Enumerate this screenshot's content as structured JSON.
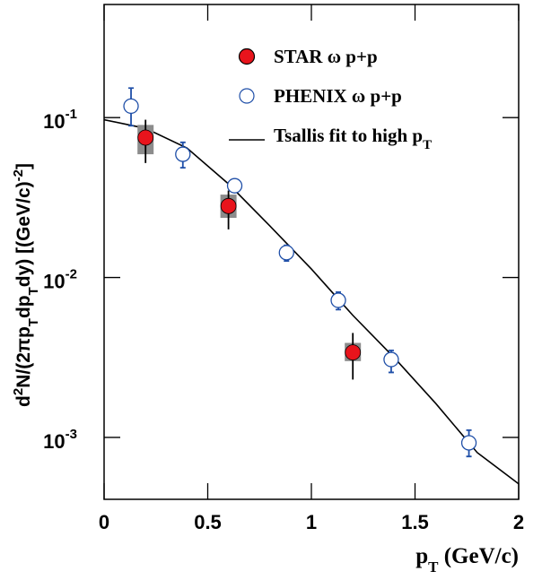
{
  "chart_data": {
    "type": "scatter",
    "log_y": true,
    "legend": "upper right",
    "xlabel": [
      {
        "text": "p"
      },
      {
        "text": "T",
        "shift": "sub"
      },
      {
        "text": " (GeV/c)"
      }
    ],
    "ylabel": [
      {
        "text": "d"
      },
      {
        "text": "2",
        "shift": "super"
      },
      {
        "text": "N/(2πp"
      },
      {
        "text": "T",
        "shift": "sub"
      },
      {
        "text": "dp"
      },
      {
        "text": "T",
        "shift": "sub"
      },
      {
        "text": "dy) [(GeV/c)"
      },
      {
        "text": "-2",
        "shift": "super"
      },
      {
        "text": "]"
      }
    ],
    "xlim": [
      0,
      2
    ],
    "xticks": [
      0,
      0.5,
      1,
      1.5,
      2
    ],
    "ylim": [
      0.00041,
      0.51
    ],
    "yticks": [
      {
        "value": 0.001,
        "label": "10",
        "label_exponent": "-3"
      },
      {
        "value": 0.01,
        "label": "10",
        "label_exponent": "-2"
      },
      {
        "value": 0.1,
        "label": "10",
        "label_exponent": "-1"
      }
    ],
    "series": [
      {
        "name": "STAR ω p+p",
        "type": "points",
        "marker": "filled",
        "color": "#e8141c",
        "x": [
          0.2,
          0.6,
          1.2
        ],
        "values": [
          0.075,
          0.028,
          0.0034
        ],
        "errors_minus": [
          0.023,
          0.008,
          0.0011
        ],
        "errors_plus": [
          0.022,
          0.007,
          0.0011
        ],
        "sys_minus": [
          0.016,
          0.0044,
          0.0004
        ],
        "sys_plus": [
          0.015,
          0.005,
          0.0005
        ]
      },
      {
        "name": "PHENIX ω p+p",
        "type": "points",
        "marker": "open",
        "color": "#1f4fa8",
        "x": [
          0.13,
          0.38,
          0.63,
          0.88,
          1.13,
          1.385,
          1.76
        ],
        "values": [
          0.118,
          0.059,
          0.0375,
          0.0143,
          0.0072,
          0.00307,
          0.000925
        ],
        "errors_minus": [
          0.029,
          0.0104,
          0.003,
          0.0016,
          0.0009,
          0.00052,
          0.000165
        ],
        "errors_plus": [
          0.035,
          0.011,
          0.003,
          0.0016,
          0.0009,
          0.00043,
          0.000185
        ]
      },
      {
        "name": "Tsallis fit to high p",
        "name_sub": "T",
        "type": "line",
        "color": "#000000",
        "x": [
          0,
          0.2,
          0.4,
          0.6,
          0.8,
          1.0,
          1.2,
          1.4,
          1.6,
          1.8,
          2.0
        ],
        "values": [
          0.097,
          0.0857,
          0.0645,
          0.0385,
          0.021,
          0.0113,
          0.0058,
          0.00315,
          0.00163,
          0.000804,
          0.000512
        ]
      }
    ]
  }
}
